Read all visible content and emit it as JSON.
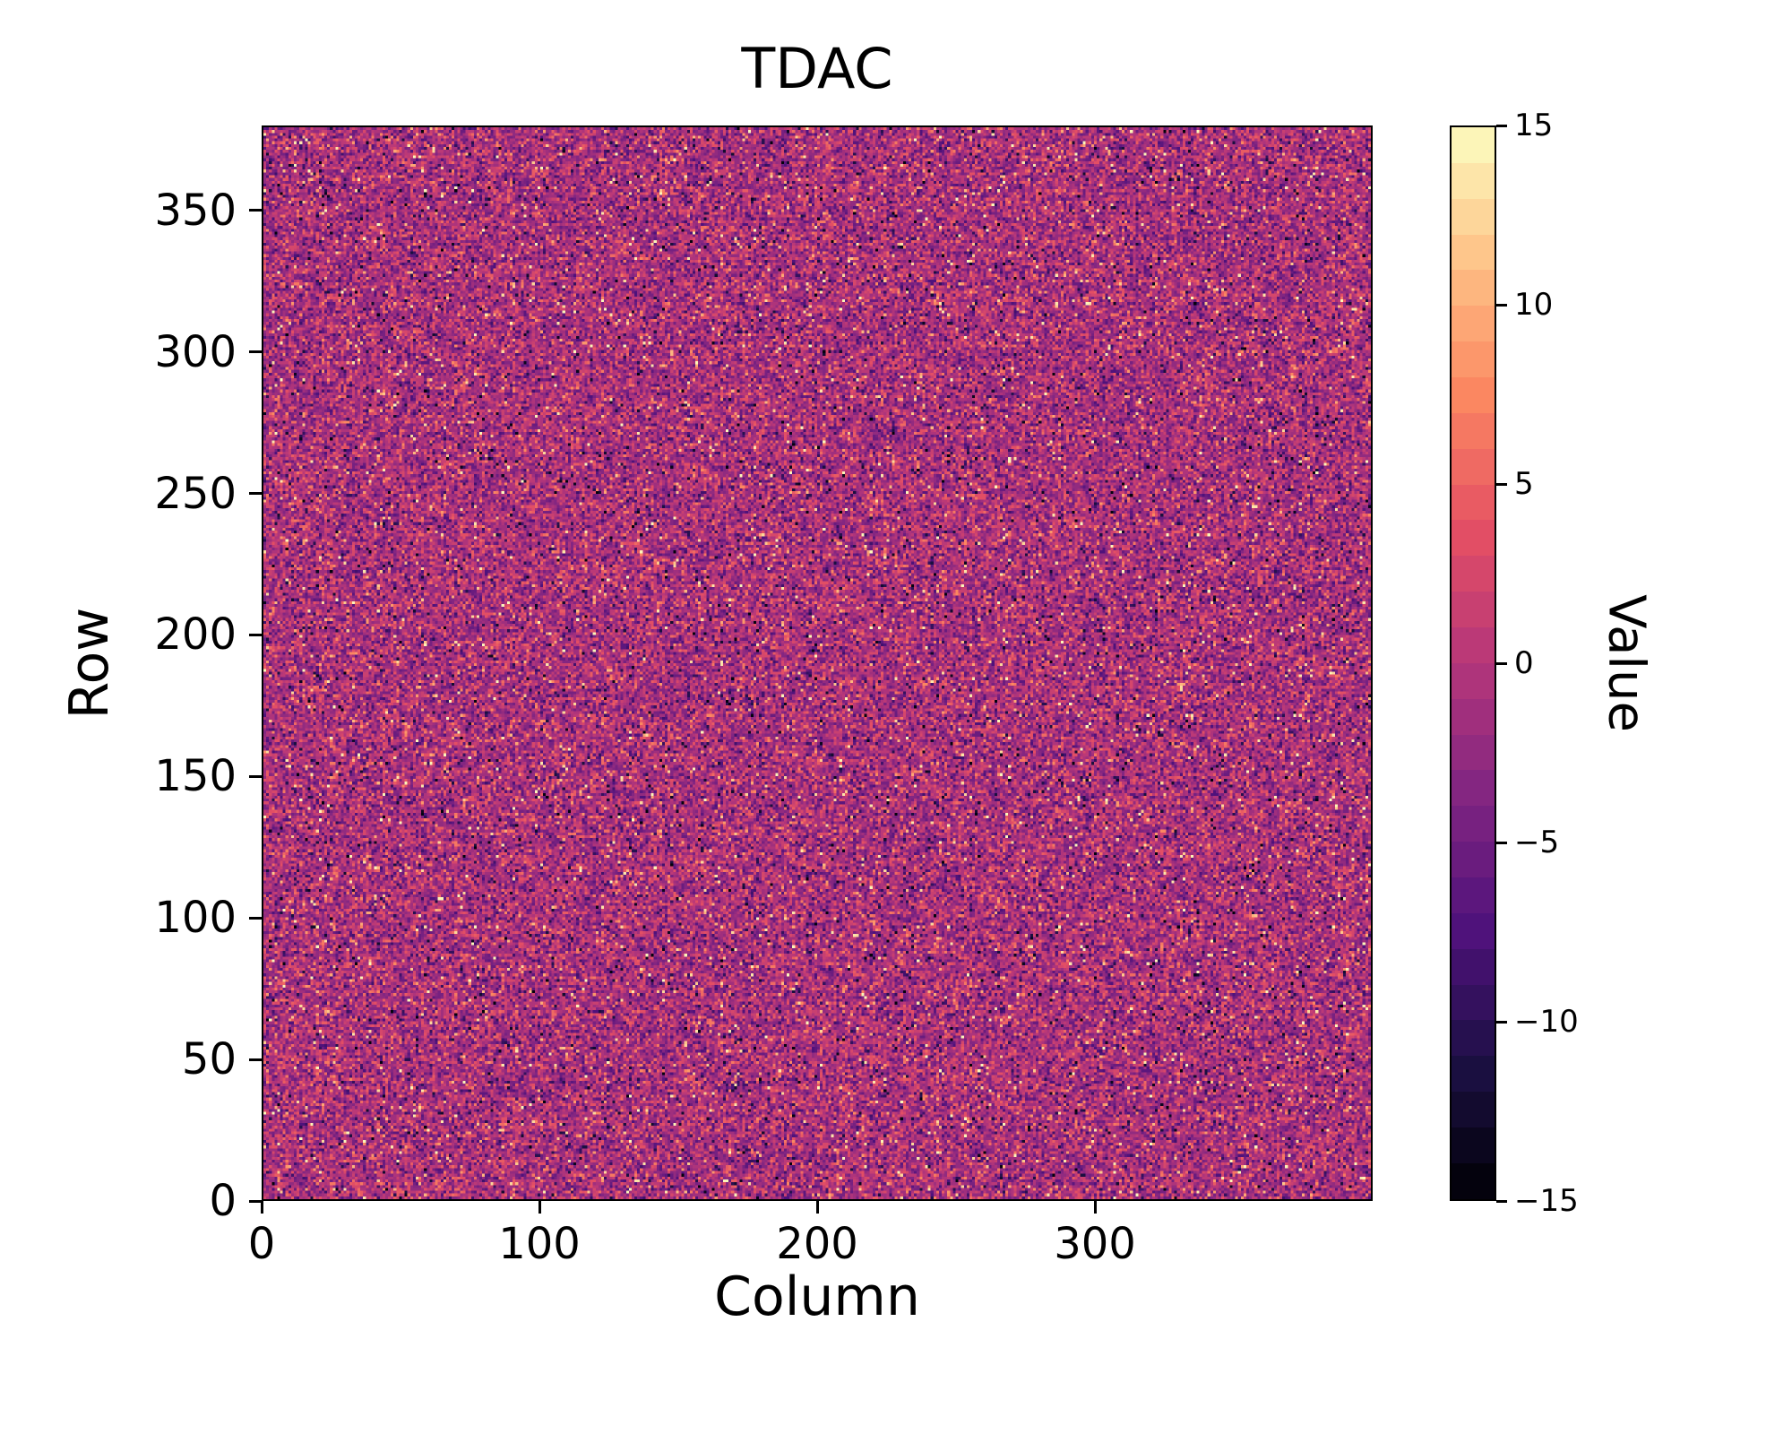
{
  "chart_data": {
    "type": "heatmap",
    "title": "TDAC",
    "xlabel": "Column",
    "ylabel": "Row",
    "colorbar_label": "Value",
    "xlim": [
      0,
      400
    ],
    "ylim": [
      0,
      380
    ],
    "grid_cols": 400,
    "grid_rows": 380,
    "vmin": -15,
    "vmax": 15,
    "levels": 30,
    "colormap": "magma",
    "colormap_stops": [
      "#000004",
      "#1c1044",
      "#4f127b",
      "#812581",
      "#b5367a",
      "#e55064",
      "#fb8761",
      "#fec287",
      "#fcfdbf"
    ],
    "x_tick_values": [
      0,
      100,
      200,
      300
    ],
    "x_tick_labels": [
      "0",
      "100",
      "200",
      "300"
    ],
    "y_tick_values": [
      0,
      50,
      100,
      150,
      200,
      250,
      300,
      350
    ],
    "y_tick_labels": [
      "0",
      "50",
      "100",
      "150",
      "200",
      "250",
      "300",
      "350"
    ],
    "colorbar_tick_values": [
      15,
      10,
      5,
      0,
      -5,
      -10,
      -15
    ],
    "colorbar_tick_labels": [
      "15",
      "10",
      "5",
      "0",
      "−5",
      "−10",
      "−15"
    ],
    "grid": false,
    "legend": false,
    "distribution": {
      "kind": "random_noise_per_pixel",
      "mean": -1.0,
      "std": 3.5,
      "outlier_fraction": 0.08,
      "outlier_range": [
        -15,
        15
      ]
    },
    "seed": 1234567
  }
}
